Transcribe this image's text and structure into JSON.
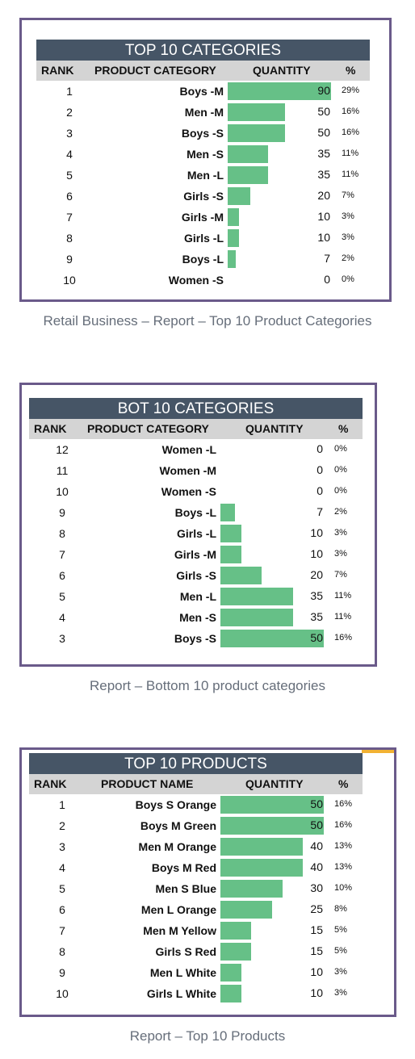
{
  "header_labels": {
    "rank": "RANK",
    "category": "PRODUCT CATEGORY",
    "product": "PRODUCT NAME",
    "quantity": "QUANTITY",
    "pct": "%"
  },
  "colors": {
    "bar": "#66c087",
    "title_bg": "#465566",
    "header_bg": "#d4d4d4",
    "border": "#6a5a8a"
  },
  "chart_data": [
    {
      "type": "bar",
      "title": "TOP 10 CATEGORIES",
      "caption": "Retail Business – Report – Top 10 Product Categories",
      "ranks": [
        "1",
        "2",
        "3",
        "4",
        "5",
        "6",
        "7",
        "8",
        "9",
        "10"
      ],
      "categories": [
        "Boys -M",
        "Men -M",
        "Boys -S",
        "Men -S",
        "Men -L",
        "Girls -S",
        "Girls -M",
        "Girls -L",
        "Boys -L",
        "Women -S"
      ],
      "values": [
        90,
        50,
        50,
        35,
        35,
        20,
        10,
        10,
        7,
        0
      ],
      "percents": [
        "29%",
        "16%",
        "16%",
        "11%",
        "11%",
        "7%",
        "3%",
        "3%",
        "2%",
        "0%"
      ],
      "max": 90
    },
    {
      "type": "bar",
      "title": "BOT 10 CATEGORIES",
      "caption": "Report – Bottom 10 product categories",
      "ranks": [
        "12",
        "11",
        "10",
        "9",
        "8",
        "7",
        "6",
        "5",
        "4",
        "3"
      ],
      "categories": [
        "Women -L",
        "Women -M",
        "Women -S",
        "Boys -L",
        "Girls -L",
        "Girls -M",
        "Girls -S",
        "Men -L",
        "Men -S",
        "Boys -S"
      ],
      "values": [
        0,
        0,
        0,
        7,
        10,
        10,
        20,
        35,
        35,
        50
      ],
      "percents": [
        "0%",
        "0%",
        "0%",
        "2%",
        "3%",
        "3%",
        "7%",
        "11%",
        "11%",
        "16%"
      ],
      "max": 50
    },
    {
      "type": "bar",
      "title": "TOP 10 PRODUCTS",
      "caption": "Report – Top 10 Products",
      "ranks": [
        "1",
        "2",
        "3",
        "4",
        "5",
        "6",
        "7",
        "8",
        "9",
        "10"
      ],
      "categories": [
        "Boys S Orange",
        "Boys M Green",
        "Men M Orange",
        "Boys M Red",
        "Men S Blue",
        "Men L Orange",
        "Men M Yellow",
        "Girls S Red",
        "Men L White",
        "Girls L White"
      ],
      "values": [
        50,
        50,
        40,
        40,
        30,
        25,
        15,
        15,
        10,
        10
      ],
      "percents": [
        "16%",
        "16%",
        "13%",
        "13%",
        "10%",
        "8%",
        "5%",
        "5%",
        "3%",
        "3%"
      ],
      "max": 50
    }
  ]
}
